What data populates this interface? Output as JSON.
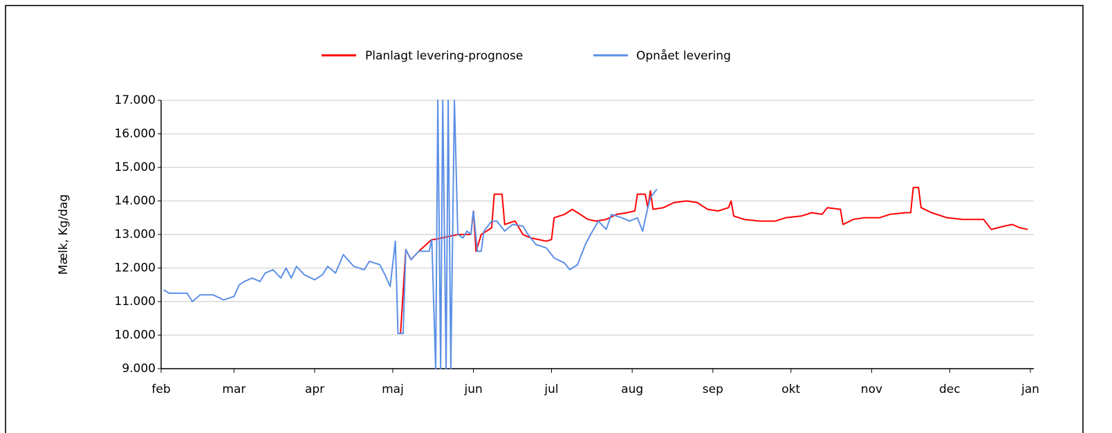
{
  "chart_data": {
    "type": "line",
    "ylabel": "Mælk, Kg/dag",
    "xlim": [
      0,
      334
    ],
    "xticks": [
      {
        "value": 0,
        "label": "feb"
      },
      {
        "value": 28,
        "label": "mar"
      },
      {
        "value": 59,
        "label": "apr"
      },
      {
        "value": 89,
        "label": "maj"
      },
      {
        "value": 120,
        "label": "jun"
      },
      {
        "value": 150,
        "label": "jul"
      },
      {
        "value": 181,
        "label": "aug"
      },
      {
        "value": 212,
        "label": "sep"
      },
      {
        "value": 242,
        "label": "okt"
      },
      {
        "value": 273,
        "label": "nov"
      },
      {
        "value": 303,
        "label": "dec"
      },
      {
        "value": 334,
        "label": "jan"
      }
    ],
    "ylim": [
      9000,
      17000
    ],
    "yticks": [
      {
        "value": 9000,
        "label": "9.000"
      },
      {
        "value": 10000,
        "label": "10.000"
      },
      {
        "value": 11000,
        "label": "11.000"
      },
      {
        "value": 12000,
        "label": "12.000"
      },
      {
        "value": 13000,
        "label": "13.000"
      },
      {
        "value": 14000,
        "label": "14.000"
      },
      {
        "value": 15000,
        "label": "15.000"
      },
      {
        "value": 16000,
        "label": "16.000"
      },
      {
        "value": 17000,
        "label": "17.000"
      }
    ],
    "grid": true,
    "legend": "top",
    "series": [
      {
        "name": "Planlagt levering-prognose",
        "color": "#ff0000",
        "x": [
          92,
          94,
          96,
          99,
          104,
          105,
          114,
          119,
          120,
          121,
          123,
          127,
          128,
          131,
          132,
          136,
          139,
          142,
          148,
          150,
          151,
          155,
          158,
          161,
          164,
          167,
          171,
          175,
          179,
          182,
          183,
          186,
          187,
          188,
          189,
          193,
          197,
          202,
          206,
          210,
          214,
          218,
          219,
          220,
          224,
          230,
          236,
          240,
          246,
          250,
          254,
          256,
          261,
          262,
          266,
          270,
          276,
          280,
          286,
          288,
          289,
          291,
          292,
          296,
          302,
          308,
          316,
          319,
          324,
          327,
          330,
          333
        ],
        "values": [
          10050,
          12550,
          12250,
          12500,
          12850,
          12850,
          13000,
          13000,
          13700,
          12500,
          13000,
          13200,
          14200,
          14200,
          13300,
          13400,
          13000,
          12900,
          12800,
          12850,
          13500,
          13600,
          13750,
          13600,
          13450,
          13400,
          13450,
          13600,
          13650,
          13700,
          14200,
          14200,
          13800,
          14300,
          13750,
          13800,
          13950,
          14000,
          13950,
          13750,
          13700,
          13800,
          14000,
          13550,
          13450,
          13400,
          13400,
          13500,
          13550,
          13650,
          13600,
          13800,
          13750,
          13300,
          13450,
          13500,
          13500,
          13600,
          13650,
          13650,
          14400,
          14400,
          13800,
          13650,
          13500,
          13450,
          13450,
          13150,
          13250,
          13300,
          13200,
          13150
        ]
      },
      {
        "name": "Opnået levering",
        "color": "#5b8fe6",
        "x": [
          1,
          3,
          10,
          12,
          15,
          20,
          24,
          28,
          30,
          32,
          35,
          38,
          40,
          43,
          46,
          48,
          50,
          52,
          55,
          59,
          62,
          64,
          67,
          70,
          74,
          78,
          80,
          84,
          86,
          88,
          90,
          91,
          93,
          94,
          96,
          99,
          103,
          104,
          105.5,
          106.3,
          107.4,
          108.2,
          109.5,
          110.3,
          111.3,
          112.7,
          114,
          116,
          117.5,
          119,
          120,
          121.5,
          123,
          124,
          127,
          129,
          132,
          135,
          139,
          141,
          144,
          148,
          151,
          155,
          157,
          160,
          163,
          165,
          168,
          171,
          173,
          177,
          180,
          183,
          185,
          187,
          188,
          190.5
        ],
        "values": [
          11350,
          11250,
          11250,
          11000,
          11200,
          11200,
          11050,
          11150,
          11500,
          11600,
          11700,
          11600,
          11850,
          11950,
          11700,
          12000,
          11700,
          12050,
          11800,
          11650,
          11800,
          12050,
          11850,
          12400,
          12050,
          11950,
          12200,
          12100,
          11800,
          11450,
          12800,
          10050,
          10050,
          12550,
          12250,
          12500,
          12500,
          12850,
          9000,
          17000,
          9000,
          17000,
          9000,
          17000,
          9000,
          17000,
          13000,
          12900,
          13100,
          13000,
          13700,
          12500,
          12500,
          13100,
          13400,
          13400,
          13100,
          13300,
          13250,
          13000,
          12700,
          12600,
          12300,
          12150,
          11950,
          12100,
          12700,
          13000,
          13400,
          13150,
          13600,
          13500,
          13400,
          13500,
          13100,
          13800,
          14100,
          14350
        ]
      }
    ]
  }
}
